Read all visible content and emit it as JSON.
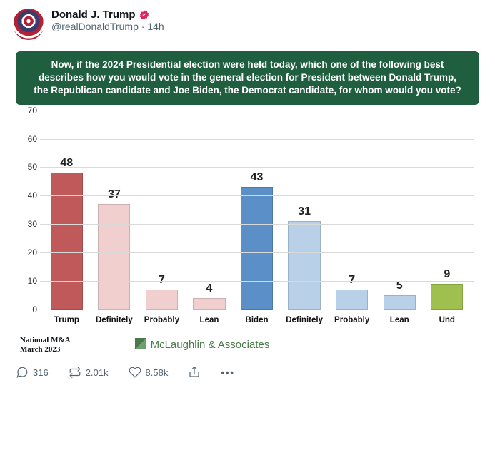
{
  "post": {
    "display_name": "Donald J. Trump",
    "handle": "@realDonaldTrump",
    "time_sep": " · ",
    "time": "14h"
  },
  "chart": {
    "type": "bar",
    "question": "Now, if the 2024 Presidential election were held today, which one of the following best describes how you would vote in the general election for President between Donald Trump, the Republican candidate and Joe Biden, the Democrat candidate, for whom would you vote?",
    "banner_bg": "#1f5f3f",
    "banner_text_color": "#ffffff",
    "ylim": [
      0,
      70
    ],
    "ytick_step": 10,
    "grid_color": "#d9d9d9",
    "axis_color": "#666666",
    "label_fontsize": 12,
    "value_fontsize": 16,
    "value_fontweight": 700,
    "bar_width": 0.68,
    "categories": [
      "Trump",
      "Definitely",
      "Probably",
      "Lean",
      "Biden",
      "Definitely",
      "Probably",
      "Lean",
      "Und"
    ],
    "values": [
      48,
      37,
      7,
      4,
      43,
      31,
      7,
      5,
      9
    ],
    "bar_colors": [
      "#c05a5a",
      "#f2cfcf",
      "#f2cfcf",
      "#f2cfcf",
      "#5b8fc7",
      "#b8d0e8",
      "#b8d0e8",
      "#b8d0e8",
      "#9fbf4f"
    ],
    "footer_left_line1": "National M&A",
    "footer_left_line2": "March 2023",
    "footer_right": "McLaughlin & Associates",
    "footer_right_color": "#4a7a4a"
  },
  "engagement": {
    "replies": "316",
    "reposts": "2.01k",
    "likes": "8.58k"
  }
}
